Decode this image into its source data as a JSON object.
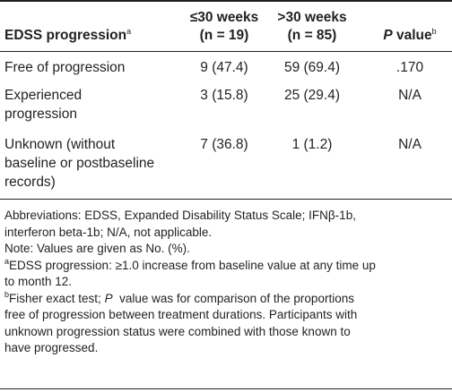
{
  "table": {
    "headers": {
      "col1_label": "EDSS progression",
      "col1_sup": "a",
      "col2_line1": "≤30 weeks",
      "col2_line2": "(n = 19)",
      "col3_line1": ">30 weeks",
      "col3_line2": "(n = 85)",
      "col4_italic": "P",
      "col4_rest": " value",
      "col4_sup": "b"
    },
    "rows": [
      {
        "label_lines": [
          "Free of progression"
        ],
        "c2": "9 (47.4)",
        "c3": "59 (69.4)",
        "c4": ".170"
      },
      {
        "label_lines": [
          "Experienced",
          "progression"
        ],
        "c2": "3 (15.8)",
        "c3": "25 (29.4)",
        "c4": "N/A"
      },
      {
        "label_lines": [
          "Unknown (without",
          "baseline or postbaseline",
          "records)"
        ],
        "c2": "7 (36.8)",
        "c3": "1 (1.2)",
        "c4": "N/A"
      }
    ]
  },
  "notes": {
    "abbrev_line1": "Abbreviations: EDSS, Expanded Disability Status Scale; IFNβ-1b,",
    "abbrev_line2": "interferon beta-1b; N/A, not applicable.",
    "values_note": "Note: Values are given as No. (%).",
    "a_sup": "a",
    "a_line1": "EDSS progression: ≥1.0 increase from baseline value at any time up",
    "a_line2": "to month 12.",
    "b_sup": "b",
    "b_line1_pre": "Fisher exact test; ",
    "b_line1_italic": "P",
    "b_line1_post": "  value was for comparison of the proportions",
    "b_line2": "free of progression between treatment durations. Participants with",
    "b_line3": "unknown progression status were combined with those known to",
    "b_line4": "have progressed."
  }
}
